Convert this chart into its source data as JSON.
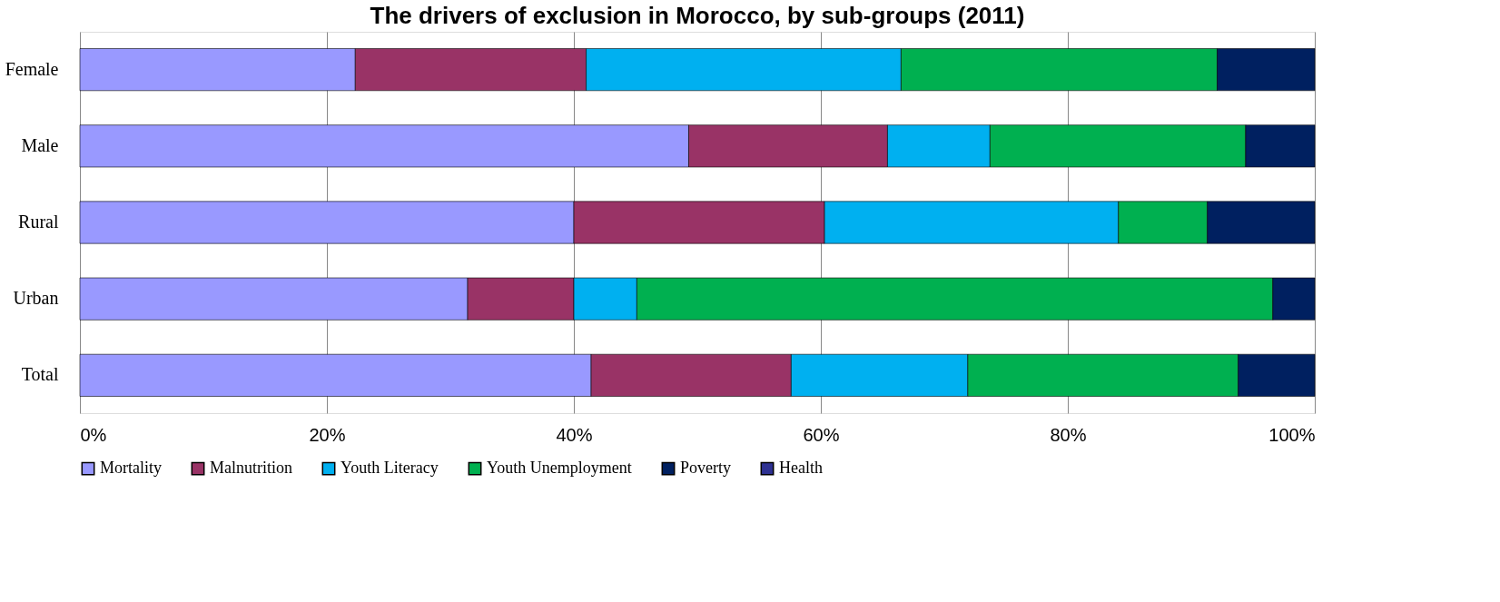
{
  "chart_data": {
    "type": "bar",
    "orientation": "horizontal",
    "stacked": true,
    "title": "The drivers of exclusion in Morocco, by sub-groups (2011)",
    "categories": [
      "Female",
      "Male",
      "Rural",
      "Urban",
      "Total"
    ],
    "series": [
      {
        "name": "Mortality",
        "color": "#9999ff",
        "values": [
          22.3,
          49.3,
          40.0,
          31.4,
          41.4
        ]
      },
      {
        "name": "Malnutrition",
        "color": "#993366",
        "values": [
          18.7,
          16.1,
          20.3,
          8.6,
          16.2
        ]
      },
      {
        "name": "Youth Literacy",
        "color": "#00b0f0",
        "values": [
          25.5,
          8.3,
          23.8,
          5.1,
          14.3
        ]
      },
      {
        "name": "Youth Unemployment",
        "color": "#00b050",
        "values": [
          25.6,
          20.7,
          7.2,
          51.5,
          21.9
        ]
      },
      {
        "name": "Poverty",
        "color": "#002060",
        "values": [
          7.9,
          5.6,
          8.7,
          3.4,
          6.2
        ]
      },
      {
        "name": "Health",
        "color": "#2e3192",
        "values": [
          null,
          null,
          null,
          null,
          null
        ]
      }
    ],
    "xlim": [
      0,
      100
    ],
    "xticks": [
      {
        "value": 0,
        "label": "0%"
      },
      {
        "value": 20,
        "label": "20%"
      },
      {
        "value": 40,
        "label": "40%"
      },
      {
        "value": 60,
        "label": "60%"
      },
      {
        "value": 80,
        "label": "80%"
      },
      {
        "value": 100,
        "label": "100%"
      }
    ],
    "grid": "x",
    "legend": "bottom"
  }
}
